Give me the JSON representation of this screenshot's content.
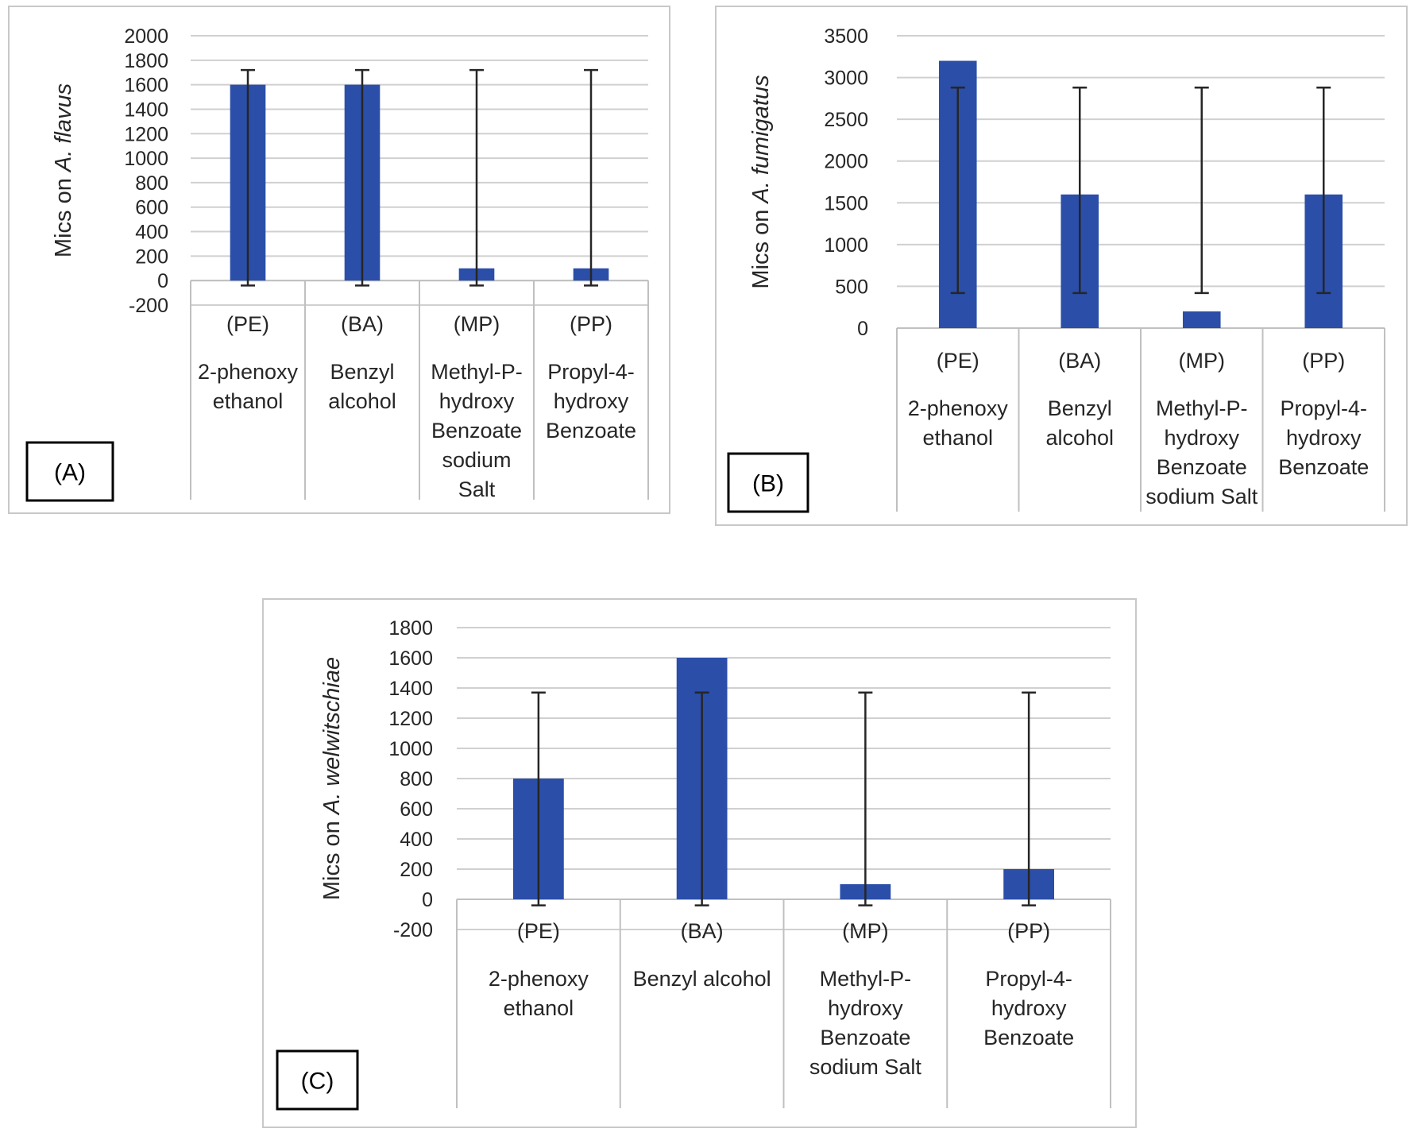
{
  "chart_data": [
    {
      "panel": "(A)",
      "type": "bar",
      "ylabel_prefix": "Mics on ",
      "ylabel_species": "A. flavus",
      "ylim": [
        -200,
        2000
      ],
      "ytick_step": 200,
      "yticks": [
        "-200",
        "0",
        "200",
        "400",
        "600",
        "800",
        "1000",
        "1200",
        "1400",
        "1600",
        "1800",
        "2000"
      ],
      "categories": [
        {
          "abbr": "(PE)",
          "lines": [
            "2-phenoxy",
            "ethanol"
          ]
        },
        {
          "abbr": "(BA)",
          "lines": [
            "Benzyl",
            "alcohol"
          ]
        },
        {
          "abbr": "(MP)",
          "lines": [
            "Methyl-P-",
            "hydroxy",
            "Benzoate",
            "sodium",
            "Salt"
          ]
        },
        {
          "abbr": "(PP)",
          "lines": [
            "Propyl-4-",
            "hydroxy",
            "Benzoate"
          ]
        }
      ],
      "values": [
        1600,
        1600,
        100,
        100
      ],
      "error_high": [
        1720,
        1720,
        1720,
        1720
      ],
      "error_low": [
        -40,
        -40,
        -40,
        -40
      ],
      "bar_color": "#2b4ea8",
      "grid": true
    },
    {
      "panel": "(B)",
      "type": "bar",
      "ylabel_prefix": "Mics on ",
      "ylabel_species": "A. fumigatus",
      "ylim": [
        0,
        3500
      ],
      "ytick_step": 500,
      "yticks": [
        "0",
        "500",
        "1000",
        "1500",
        "2000",
        "2500",
        "3000",
        "3500"
      ],
      "categories": [
        {
          "abbr": "(PE)",
          "lines": [
            "2-phenoxy",
            "ethanol"
          ]
        },
        {
          "abbr": "(BA)",
          "lines": [
            "Benzyl",
            "alcohol"
          ]
        },
        {
          "abbr": "(MP)",
          "lines": [
            "Methyl-P-",
            "hydroxy",
            "Benzoate",
            "sodium Salt"
          ]
        },
        {
          "abbr": "(PP)",
          "lines": [
            "Propyl-4-",
            "hydroxy",
            "Benzoate"
          ]
        }
      ],
      "values": [
        3200,
        1600,
        200,
        1600
      ],
      "error_high": [
        2880,
        2880,
        2880,
        2880
      ],
      "error_low": [
        420,
        420,
        420,
        420
      ],
      "bar_color": "#2b4ea8",
      "grid": true
    },
    {
      "panel": "(C)",
      "type": "bar",
      "ylabel_prefix": "Mics on ",
      "ylabel_species": "A. welwitschiae",
      "ylim": [
        -200,
        1800
      ],
      "ytick_step": 200,
      "yticks": [
        "-200",
        "0",
        "200",
        "400",
        "600",
        "800",
        "1000",
        "1200",
        "1400",
        "1600",
        "1800"
      ],
      "categories": [
        {
          "abbr": "(PE)",
          "lines": [
            "2-phenoxy",
            "ethanol"
          ]
        },
        {
          "abbr": "(BA)",
          "lines": [
            "Benzyl alcohol"
          ]
        },
        {
          "abbr": "(MP)",
          "lines": [
            "Methyl-P-",
            "hydroxy",
            "Benzoate",
            "sodium Salt"
          ]
        },
        {
          "abbr": "(PP)",
          "lines": [
            "Propyl-4-",
            "hydroxy",
            "Benzoate"
          ]
        }
      ],
      "values": [
        800,
        1600,
        100,
        200
      ],
      "error_high": [
        1370,
        1370,
        1370,
        1370
      ],
      "error_low": [
        -40,
        -40,
        -40,
        -40
      ],
      "bar_color": "#2b4ea8",
      "grid": true
    }
  ]
}
